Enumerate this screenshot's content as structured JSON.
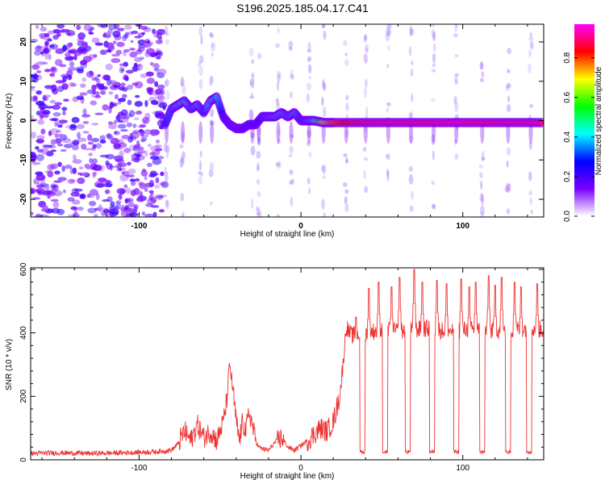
{
  "title": "S196.2025.185.04.17.C41",
  "chart_data": [
    {
      "type": "heatmap",
      "xlabel": "Height of straight line (km)",
      "ylabel": "Frequency (Hz)",
      "xlim": [
        -167,
        150
      ],
      "ylim": [
        -24.5,
        24.5
      ],
      "x_ticks": [
        -100,
        0,
        100
      ],
      "x_tick_labels": [
        "-100",
        "0",
        "100"
      ],
      "y_ticks": [
        -20,
        -10,
        0,
        10,
        20
      ],
      "y_tick_labels": [
        "-20",
        "-10",
        "0",
        "10",
        "20"
      ],
      "grid": false,
      "colorbar": {
        "label": "Normalized spectral amplitude",
        "range": [
          0.0,
          0.97
        ],
        "ticks": [
          0.0,
          0.2,
          0.4,
          0.6,
          0.8
        ],
        "tick_labels": [
          "0.0",
          "0.2",
          "0.4",
          "0.6",
          "0.8"
        ],
        "colormap": [
          "#ffffff",
          "#7a00ff",
          "#0000ff",
          "#00ffff",
          "#00ff00",
          "#ffff00",
          "#ff0000",
          "#ff00ff"
        ]
      },
      "noise_region": {
        "x": [
          -167,
          -84
        ],
        "amplitude": 0.18
      },
      "signal_track": {
        "x": [
          -84,
          -80,
          -76,
          -72,
          -68,
          -64,
          -60,
          -56,
          -52,
          -48,
          -44,
          -40,
          -36,
          -32,
          -28,
          -24,
          -20,
          -16,
          -12,
          -8,
          -4,
          0,
          4,
          8,
          14,
          20,
          30,
          40,
          50,
          60,
          70,
          80,
          90,
          100,
          110,
          120,
          130,
          140,
          150
        ],
        "frequency": [
          -1,
          3,
          4,
          5,
          3,
          4,
          2,
          5,
          6,
          1,
          -1,
          -2,
          -2,
          -1,
          -1,
          1,
          1,
          1,
          2,
          1,
          2,
          0,
          0,
          0,
          -0.5,
          -0.5,
          -0.5,
          -0.5,
          -0.5,
          -0.5,
          -0.5,
          -0.5,
          -0.5,
          -0.5,
          -0.5,
          -0.5,
          -0.5,
          -0.5,
          -0.5
        ],
        "amplitude": [
          0.3,
          0.35,
          0.4,
          0.45,
          0.35,
          0.4,
          0.3,
          0.45,
          0.4,
          0.25,
          0.2,
          0.22,
          0.25,
          0.3,
          0.25,
          0.3,
          0.35,
          0.38,
          0.4,
          0.35,
          0.38,
          0.3,
          0.35,
          0.4,
          0.7,
          0.8,
          0.85,
          0.88,
          0.9,
          0.9,
          0.9,
          0.9,
          0.92,
          0.92,
          0.9,
          0.9,
          0.9,
          0.9,
          0.9
        ]
      },
      "vertical_streaks_x": [
        -83,
        -73,
        -62,
        -55,
        -30,
        -26,
        -14,
        -6,
        5,
        14,
        28,
        40,
        54,
        68,
        82,
        96,
        112,
        128,
        142
      ]
    },
    {
      "type": "line",
      "xlabel": "Height of straight line (km)",
      "ylabel": "SNR (10 * v/v)",
      "xlim": [
        -167,
        150
      ],
      "ylim": [
        0,
        605
      ],
      "x_ticks": [
        -100,
        0,
        100
      ],
      "x_tick_labels": [
        "-100",
        "0",
        "100"
      ],
      "y_ticks": [
        0,
        200,
        400,
        600
      ],
      "y_tick_labels": [
        "0",
        "200",
        "400",
        "600"
      ],
      "grid": false,
      "series": [
        {
          "color": "#ee3333",
          "x": [
            -167,
            -150,
            -130,
            -110,
            -90,
            -80,
            -76,
            -72,
            -68,
            -64,
            -60,
            -56,
            -52,
            -48,
            -46,
            -44,
            -42,
            -40,
            -38,
            -36,
            -34,
            -32,
            -30,
            -28,
            -26,
            -24,
            -20,
            -16,
            -12,
            -8,
            -4,
            0,
            4,
            8,
            12,
            16,
            20,
            24,
            26,
            28,
            30,
            32,
            34,
            36,
            40,
            50,
            60,
            70,
            80,
            90,
            100,
            110,
            120,
            130,
            140,
            150
          ],
          "y": [
            20,
            22,
            20,
            22,
            25,
            30,
            50,
            90,
            60,
            110,
            70,
            90,
            60,
            120,
            180,
            300,
            220,
            120,
            60,
            120,
            90,
            150,
            110,
            60,
            40,
            35,
            30,
            55,
            70,
            40,
            30,
            45,
            60,
            80,
            100,
            90,
            120,
            200,
            300,
            420,
            400,
            390,
            400,
            395,
            400,
            410,
            405,
            410,
            415,
            405,
            410,
            410,
            405,
            410,
            415,
            410
          ],
          "dips_x": [
            38,
            52,
            66,
            81,
            96,
            112,
            128,
            141
          ],
          "dip_value": 25,
          "spikes": [
            {
              "x": 34,
              "y": 450
            },
            {
              "x": 42,
              "y": 540
            },
            {
              "x": 48,
              "y": 560
            },
            {
              "x": 56,
              "y": 545
            },
            {
              "x": 61,
              "y": 575
            },
            {
              "x": 70,
              "y": 600
            },
            {
              "x": 75,
              "y": 560
            },
            {
              "x": 84,
              "y": 565
            },
            {
              "x": 90,
              "y": 555
            },
            {
              "x": 99,
              "y": 570
            },
            {
              "x": 104,
              "y": 545
            },
            {
              "x": 108,
              "y": 560
            },
            {
              "x": 116,
              "y": 580
            },
            {
              "x": 120,
              "y": 550
            },
            {
              "x": 124,
              "y": 575
            },
            {
              "x": 132,
              "y": 560
            },
            {
              "x": 136,
              "y": 545
            },
            {
              "x": 146,
              "y": 555
            }
          ]
        }
      ]
    }
  ]
}
